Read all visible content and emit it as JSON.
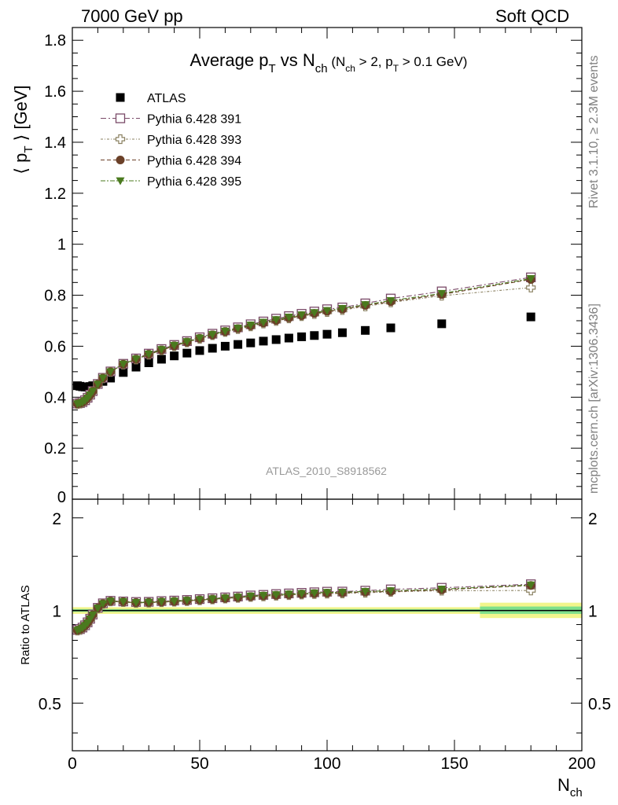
{
  "header": {
    "left": "7000 GeV pp",
    "right": "Soft QCD"
  },
  "side_labels": {
    "rivet": "Rivet 3.1.10, ≥ 2.3M events",
    "mcplots": "mcplots.cern.ch [arXiv:1306.3436]"
  },
  "watermark": "ATLAS_2010_S8918562",
  "colors": {
    "atlas": "#000000",
    "p391": "#7a4a68",
    "p393": "#8a8060",
    "p394": "#6b4028",
    "p395": "#4a7a1e",
    "band_yellow": "#f2f58c",
    "band_green": "#7fe08c"
  },
  "chart_data": [
    {
      "type": "scatter",
      "title": "Average p_T vs N_ch (N_ch > 2, p_T > 0.1 GeV)",
      "title_parts": {
        "main": "Average p",
        "main_sub": "T",
        "vs": " vs N",
        "vs_sub": "ch",
        "cond_a": " (N",
        "cond_a_sub": "ch",
        "cond_b": " > 2, p",
        "cond_b_sub": "T",
        "cond_c": " > 0.1 GeV)"
      },
      "ylabel": "⟨ p_T ⟩ [GeV]",
      "ylabel_parts": {
        "pre": "⟨ p",
        "sub": "T",
        "post": " ⟩  [GeV]"
      },
      "xlim": [
        0,
        200
      ],
      "ylim": [
        0,
        1.85
      ],
      "yticks": [
        "0",
        "0.2",
        "0.4",
        "0.6",
        "0.8",
        "1",
        "1.2",
        "1.4",
        "1.6",
        "1.8"
      ],
      "ytick_values": [
        0,
        0.2,
        0.4,
        0.6,
        0.8,
        1,
        1.2,
        1.4,
        1.6,
        1.8
      ],
      "legend_position": "top-left",
      "legend": [
        "ATLAS",
        "Pythia 6.428 391",
        "Pythia 6.428 393",
        "Pythia 6.428 394",
        "Pythia 6.428 395"
      ],
      "series": [
        {
          "name": "ATLAS",
          "marker": "square-filled",
          "x": [
            2,
            3,
            4,
            5,
            6,
            7,
            8,
            10,
            12,
            15,
            20,
            25,
            30,
            35,
            40,
            45,
            50,
            55,
            60,
            65,
            70,
            75,
            80,
            85,
            90,
            95,
            100,
            106,
            115,
            125,
            145,
            180
          ],
          "y": [
            0.445,
            0.443,
            0.441,
            0.44,
            0.44,
            0.442,
            0.445,
            0.452,
            0.462,
            0.475,
            0.497,
            0.518,
            0.535,
            0.549,
            0.562,
            0.573,
            0.583,
            0.592,
            0.6,
            0.607,
            0.613,
            0.62,
            0.626,
            0.632,
            0.637,
            0.642,
            0.647,
            0.653,
            0.662,
            0.672,
            0.688,
            0.715
          ]
        },
        {
          "name": "Pythia 6.428 391",
          "marker": "square-open",
          "x": [
            2,
            3,
            4,
            5,
            6,
            7,
            8,
            10,
            12,
            15,
            20,
            25,
            30,
            35,
            40,
            45,
            50,
            55,
            60,
            65,
            70,
            75,
            80,
            85,
            90,
            95,
            100,
            106,
            115,
            125,
            145,
            180
          ],
          "y": [
            0.375,
            0.377,
            0.381,
            0.388,
            0.398,
            0.41,
            0.424,
            0.452,
            0.476,
            0.501,
            0.531,
            0.552,
            0.571,
            0.589,
            0.605,
            0.62,
            0.635,
            0.649,
            0.662,
            0.674,
            0.686,
            0.697,
            0.708,
            0.718,
            0.727,
            0.736,
            0.745,
            0.752,
            0.768,
            0.787,
            0.815,
            0.87
          ]
        },
        {
          "name": "Pythia 6.428 393",
          "marker": "cross-open",
          "x": [
            2,
            3,
            4,
            5,
            6,
            7,
            8,
            10,
            12,
            15,
            20,
            25,
            30,
            35,
            40,
            45,
            50,
            55,
            60,
            65,
            70,
            75,
            80,
            85,
            90,
            95,
            100,
            106,
            115,
            125,
            145,
            180
          ],
          "y": [
            0.373,
            0.375,
            0.379,
            0.386,
            0.396,
            0.408,
            0.422,
            0.45,
            0.474,
            0.499,
            0.528,
            0.548,
            0.567,
            0.584,
            0.6,
            0.615,
            0.629,
            0.643,
            0.656,
            0.667,
            0.678,
            0.689,
            0.699,
            0.709,
            0.718,
            0.726,
            0.734,
            0.742,
            0.756,
            0.772,
            0.798,
            0.83
          ]
        },
        {
          "name": "Pythia 6.428 394",
          "marker": "circle-filled",
          "x": [
            2,
            3,
            4,
            5,
            6,
            7,
            8,
            10,
            12,
            15,
            20,
            25,
            30,
            35,
            40,
            45,
            50,
            55,
            60,
            65,
            70,
            75,
            80,
            85,
            90,
            95,
            100,
            106,
            115,
            125,
            145,
            180
          ],
          "y": [
            0.374,
            0.376,
            0.38,
            0.387,
            0.397,
            0.409,
            0.423,
            0.451,
            0.475,
            0.5,
            0.529,
            0.549,
            0.568,
            0.585,
            0.601,
            0.616,
            0.631,
            0.644,
            0.657,
            0.669,
            0.68,
            0.691,
            0.701,
            0.711,
            0.72,
            0.729,
            0.737,
            0.745,
            0.76,
            0.775,
            0.803,
            0.862
          ]
        },
        {
          "name": "Pythia 6.428 395",
          "marker": "triangle-down-filled",
          "x": [
            2,
            3,
            4,
            5,
            6,
            7,
            8,
            10,
            12,
            15,
            20,
            25,
            30,
            35,
            40,
            45,
            50,
            55,
            60,
            65,
            70,
            75,
            80,
            85,
            90,
            95,
            100,
            106,
            115,
            125,
            145,
            180
          ],
          "y": [
            0.374,
            0.376,
            0.38,
            0.387,
            0.397,
            0.409,
            0.423,
            0.451,
            0.475,
            0.5,
            0.53,
            0.55,
            0.569,
            0.587,
            0.603,
            0.618,
            0.632,
            0.646,
            0.659,
            0.671,
            0.683,
            0.694,
            0.704,
            0.714,
            0.723,
            0.732,
            0.74,
            0.748,
            0.763,
            0.779,
            0.807,
            0.865
          ]
        }
      ]
    },
    {
      "type": "scatter",
      "ylabel": "Ratio to ATLAS",
      "xlabel": "N_ch",
      "xlabel_parts": {
        "main": "N",
        "sub": "ch"
      },
      "xlim": [
        0,
        200
      ],
      "ylim": [
        0.35,
        2.3
      ],
      "xticks": [
        "0",
        "50",
        "100",
        "150",
        "200"
      ],
      "xtick_values": [
        0,
        50,
        100,
        150,
        200
      ],
      "yticks": [
        "0.5",
        "1",
        "2"
      ],
      "ytick_values": [
        0.5,
        1,
        2
      ],
      "scale": "log",
      "reference_line": 1,
      "uncertainty_bands": [
        {
          "x": [
            0,
            160
          ],
          "yellow": [
            0.975,
            1.025
          ],
          "green": [
            0.99,
            1.01
          ]
        },
        {
          "x": [
            160,
            200
          ],
          "yellow": [
            0.945,
            1.06
          ],
          "green": [
            0.975,
            1.03
          ]
        }
      ],
      "series": [
        {
          "name": "Pythia 6.428 391",
          "marker": "square-open",
          "x": [
            2,
            3,
            4,
            5,
            6,
            7,
            8,
            10,
            12,
            15,
            20,
            25,
            30,
            35,
            40,
            45,
            50,
            55,
            60,
            65,
            70,
            75,
            80,
            85,
            90,
            95,
            100,
            106,
            115,
            125,
            145,
            180
          ],
          "y": [
            0.865,
            0.87,
            0.88,
            0.895,
            0.915,
            0.94,
            0.97,
            1.02,
            1.055,
            1.075,
            1.07,
            1.066,
            1.067,
            1.073,
            1.077,
            1.082,
            1.089,
            1.096,
            1.103,
            1.11,
            1.119,
            1.124,
            1.131,
            1.136,
            1.141,
            1.146,
            1.151,
            1.152,
            1.16,
            1.171,
            1.185,
            1.217
          ]
        },
        {
          "name": "Pythia 6.428 393",
          "marker": "cross-open",
          "x": [
            2,
            3,
            4,
            5,
            6,
            7,
            8,
            10,
            12,
            15,
            20,
            25,
            30,
            35,
            40,
            45,
            50,
            55,
            60,
            65,
            70,
            75,
            80,
            85,
            90,
            95,
            100,
            106,
            115,
            125,
            145,
            180
          ],
          "y": [
            0.86,
            0.865,
            0.875,
            0.89,
            0.91,
            0.935,
            0.965,
            1.015,
            1.05,
            1.07,
            1.065,
            1.058,
            1.06,
            1.064,
            1.068,
            1.073,
            1.079,
            1.086,
            1.093,
            1.099,
            1.106,
            1.111,
            1.117,
            1.122,
            1.127,
            1.131,
            1.134,
            1.136,
            1.142,
            1.149,
            1.16,
            1.161
          ]
        },
        {
          "name": "Pythia 6.428 394",
          "marker": "circle-filled",
          "x": [
            2,
            3,
            4,
            5,
            6,
            7,
            8,
            10,
            12,
            15,
            20,
            25,
            30,
            35,
            40,
            45,
            50,
            55,
            60,
            65,
            70,
            75,
            80,
            85,
            90,
            95,
            100,
            106,
            115,
            125,
            145,
            180
          ],
          "y": [
            0.862,
            0.868,
            0.878,
            0.893,
            0.912,
            0.938,
            0.968,
            1.018,
            1.052,
            1.072,
            1.067,
            1.06,
            1.062,
            1.066,
            1.07,
            1.075,
            1.082,
            1.088,
            1.095,
            1.102,
            1.109,
            1.115,
            1.12,
            1.125,
            1.13,
            1.135,
            1.139,
            1.141,
            1.148,
            1.153,
            1.167,
            1.206
          ]
        },
        {
          "name": "Pythia 6.428 395",
          "marker": "triangle-down-filled",
          "x": [
            2,
            3,
            4,
            5,
            6,
            7,
            8,
            10,
            12,
            15,
            20,
            25,
            30,
            35,
            40,
            45,
            50,
            55,
            60,
            65,
            70,
            75,
            80,
            85,
            90,
            95,
            100,
            106,
            115,
            125,
            145,
            180
          ],
          "y": [
            0.862,
            0.868,
            0.878,
            0.893,
            0.912,
            0.938,
            0.968,
            1.018,
            1.052,
            1.072,
            1.069,
            1.062,
            1.064,
            1.069,
            1.073,
            1.079,
            1.084,
            1.091,
            1.098,
            1.105,
            1.114,
            1.119,
            1.125,
            1.13,
            1.135,
            1.14,
            1.144,
            1.146,
            1.153,
            1.159,
            1.173,
            1.21
          ]
        }
      ]
    }
  ]
}
